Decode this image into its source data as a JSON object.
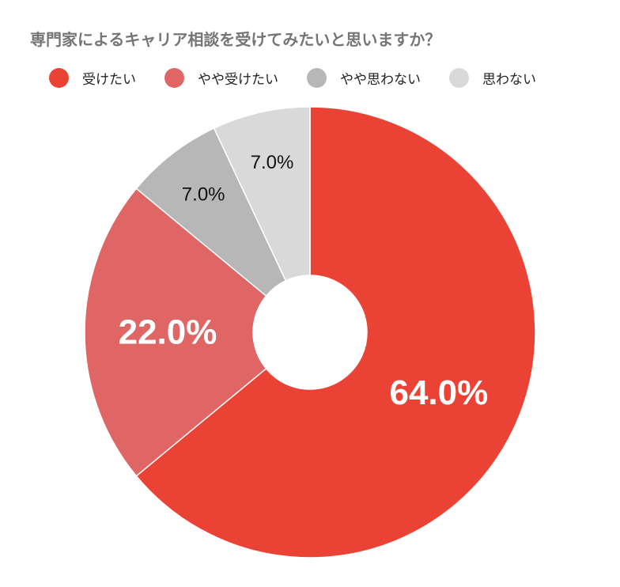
{
  "chart_data": {
    "type": "pie",
    "title": "専門家によるキャリア相談を受けてみたいと思いますか？",
    "categories": [
      "受けたい",
      "やや受けたい",
      "やや思わない",
      "思わない"
    ],
    "values": [
      64.0,
      22.0,
      7.0,
      7.0
    ],
    "labels": [
      "64.0%",
      "22.0%",
      "7.0%",
      "7.0%"
    ],
    "colors": [
      "#ea4335",
      "#e06666",
      "#b7b7b7",
      "#d9d9d9"
    ],
    "donut": true,
    "legend": "top"
  }
}
